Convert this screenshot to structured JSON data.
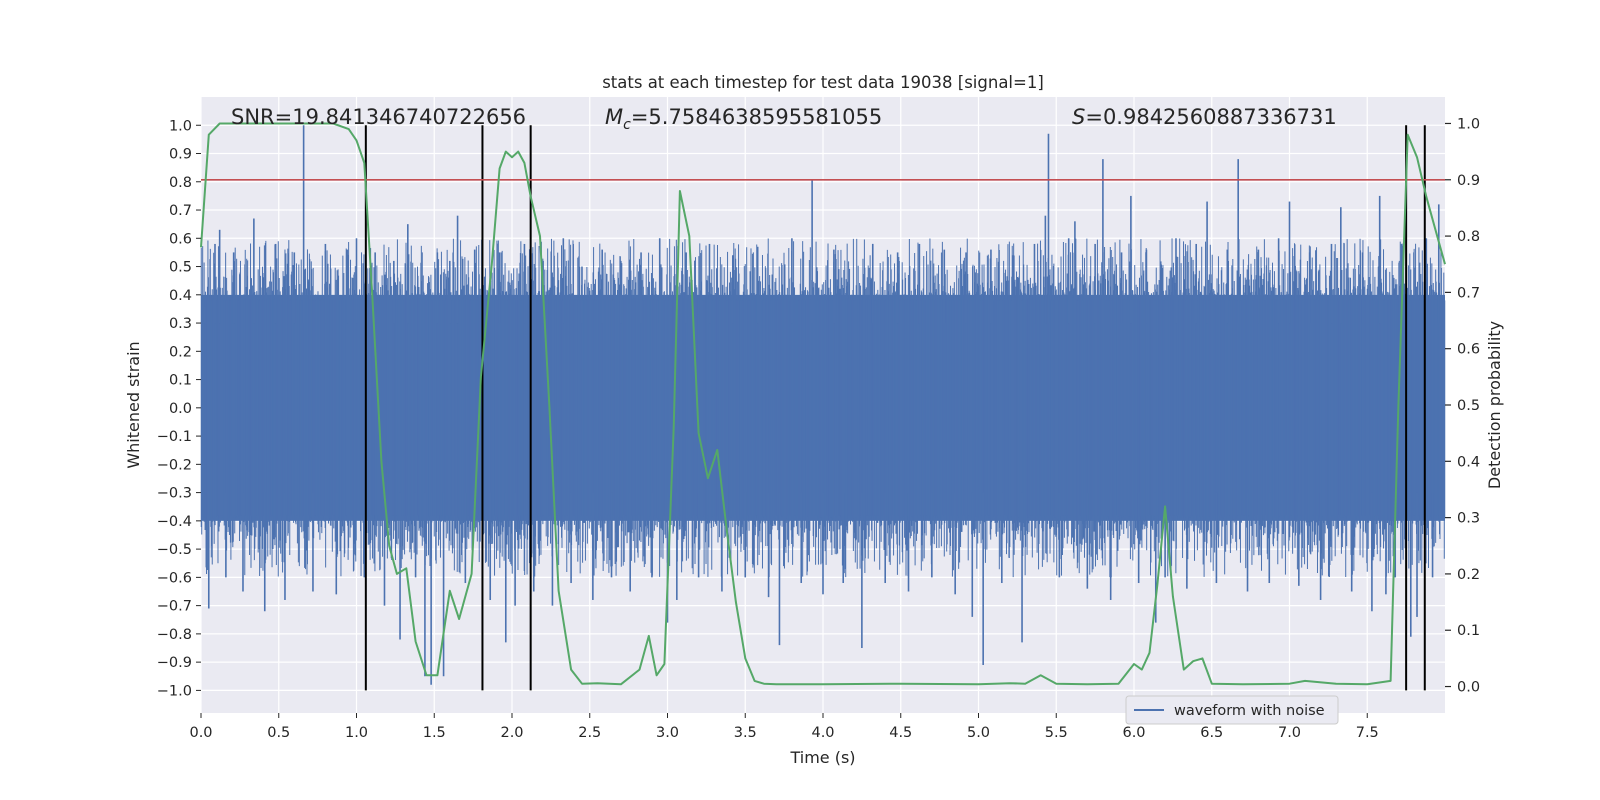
{
  "chart_data": {
    "type": "line",
    "title": "stats at each timestep for test data 19038 [signal=1]",
    "xlabel": "Time (s)",
    "ylabel_left": "Whitened strain",
    "ylabel_right": "Detection probability",
    "xlim": [
      0.0,
      8.0
    ],
    "ylim_left": [
      -1.08,
      1.1
    ],
    "ylim_right": [
      -0.047,
      1.047
    ],
    "x_ticks": [
      "0.0",
      "0.5",
      "1.0",
      "1.5",
      "2.0",
      "2.5",
      "3.0",
      "3.5",
      "4.0",
      "4.5",
      "5.0",
      "5.5",
      "6.0",
      "6.5",
      "7.0",
      "7.5"
    ],
    "y_left_ticks": [
      "1.0",
      "0.9",
      "0.8",
      "0.7",
      "0.6",
      "0.5",
      "0.4",
      "0.3",
      "0.2",
      "0.1",
      "0.0",
      "−0.1",
      "−0.2",
      "−0.3",
      "−0.4",
      "−0.5",
      "−0.6",
      "−0.7",
      "−0.8",
      "−0.9",
      "−1.0"
    ],
    "y_right_ticks": [
      "0.0",
      "0.1",
      "0.2",
      "0.3",
      "0.4",
      "0.5",
      "0.6",
      "0.7",
      "0.8",
      "0.9",
      "1.0"
    ],
    "annotations": {
      "snr": "SNR=19.841346740722656",
      "mc_symbol": "M",
      "mc_subscript": "c",
      "mc_value": "=5.7584638595581055",
      "s_symbol": "S",
      "s_value": "=0.9842560887336731"
    },
    "threshold": {
      "value": 0.9,
      "axis": "right",
      "color": "#c44e52"
    },
    "vertical_lines": [
      1.06,
      1.81,
      2.12,
      7.75,
      7.87
    ],
    "series": [
      {
        "name": "waveform with noise",
        "axis": "left",
        "color": "#4c72b0",
        "core_band": [
          -0.4,
          0.4
        ],
        "spikes": [
          [
            0.02,
            0.36
          ],
          [
            0.05,
            -0.71
          ],
          [
            0.09,
            0.58
          ],
          [
            0.12,
            0.63
          ],
          [
            0.16,
            -0.6
          ],
          [
            0.21,
            0.55
          ],
          [
            0.27,
            -0.65
          ],
          [
            0.34,
            0.67
          ],
          [
            0.41,
            -0.72
          ],
          [
            0.48,
            0.58
          ],
          [
            0.54,
            -0.68
          ],
          [
            0.6,
            0.55
          ],
          [
            0.66,
            1.0
          ],
          [
            0.72,
            -0.65
          ],
          [
            0.8,
            0.58
          ],
          [
            0.87,
            -0.66
          ],
          [
            0.94,
            0.56
          ],
          [
            1.0,
            0.6
          ],
          [
            1.05,
            -0.6
          ],
          [
            1.12,
            0.55
          ],
          [
            1.18,
            -0.7
          ],
          [
            1.24,
            0.52
          ],
          [
            1.28,
            -0.82
          ],
          [
            1.33,
            0.65
          ],
          [
            1.38,
            -0.6
          ],
          [
            1.44,
            -0.95
          ],
          [
            1.48,
            -0.98
          ],
          [
            1.52,
            0.55
          ],
          [
            1.56,
            -0.95
          ],
          [
            1.6,
            0.52
          ],
          [
            1.65,
            0.68
          ],
          [
            1.7,
            -0.62
          ],
          [
            1.76,
            0.56
          ],
          [
            1.86,
            -0.68
          ],
          [
            1.92,
            0.55
          ],
          [
            1.96,
            -0.83
          ],
          [
            2.02,
            -0.7
          ],
          [
            2.08,
            0.58
          ],
          [
            2.14,
            -0.65
          ],
          [
            2.2,
            0.52
          ],
          [
            2.26,
            -0.7
          ],
          [
            2.33,
            0.6
          ],
          [
            2.38,
            -0.62
          ],
          [
            2.45,
            0.5
          ],
          [
            2.52,
            -0.68
          ],
          [
            2.58,
            0.56
          ],
          [
            2.64,
            -0.6
          ],
          [
            2.7,
            0.52
          ],
          [
            2.76,
            -0.65
          ],
          [
            2.83,
            0.55
          ],
          [
            2.9,
            -0.6
          ],
          [
            2.95,
            0.6
          ],
          [
            3.0,
            -0.76
          ],
          [
            3.06,
            -0.68
          ],
          [
            3.12,
            0.55
          ],
          [
            3.2,
            -0.6
          ],
          [
            3.27,
            0.58
          ],
          [
            3.35,
            -0.65
          ],
          [
            3.42,
            0.54
          ],
          [
            3.5,
            -0.6
          ],
          [
            3.58,
            0.57
          ],
          [
            3.65,
            -0.67
          ],
          [
            3.72,
            -0.84
          ],
          [
            3.8,
            0.6
          ],
          [
            3.86,
            -0.62
          ],
          [
            3.93,
            0.81
          ],
          [
            4.0,
            -0.66
          ],
          [
            4.07,
            0.56
          ],
          [
            4.13,
            -0.62
          ],
          [
            4.25,
            -0.85
          ],
          [
            4.32,
            0.58
          ],
          [
            4.4,
            -0.62
          ],
          [
            4.48,
            0.55
          ],
          [
            4.55,
            -0.65
          ],
          [
            4.62,
            0.58
          ],
          [
            4.7,
            -0.6
          ],
          [
            4.78,
            0.56
          ],
          [
            4.85,
            -0.66
          ],
          [
            4.92,
            0.55
          ],
          [
            4.96,
            -0.74
          ],
          [
            5.03,
            -0.91
          ],
          [
            5.08,
            0.56
          ],
          [
            5.15,
            -0.62
          ],
          [
            5.22,
            0.54
          ],
          [
            5.28,
            -0.83
          ],
          [
            5.36,
            0.58
          ],
          [
            5.43,
            0.68
          ],
          [
            5.45,
            0.97
          ],
          [
            5.52,
            -0.6
          ],
          [
            5.58,
            0.6
          ],
          [
            5.62,
            0.66
          ],
          [
            5.7,
            -0.64
          ],
          [
            5.75,
            0.58
          ],
          [
            5.8,
            0.88
          ],
          [
            5.85,
            -0.68
          ],
          [
            5.92,
            0.55
          ],
          [
            5.98,
            0.75
          ],
          [
            6.03,
            -0.62
          ],
          [
            6.08,
            0.56
          ],
          [
            6.14,
            -0.76
          ],
          [
            6.2,
            -0.6
          ],
          [
            6.27,
            0.6
          ],
          [
            6.34,
            -0.64
          ],
          [
            6.4,
            0.58
          ],
          [
            6.47,
            0.73
          ],
          [
            6.53,
            -0.62
          ],
          [
            6.6,
            0.56
          ],
          [
            6.67,
            0.88
          ],
          [
            6.73,
            -0.65
          ],
          [
            6.8,
            0.56
          ],
          [
            6.87,
            -0.62
          ],
          [
            6.93,
            0.6
          ],
          [
            7.0,
            0.73
          ],
          [
            7.06,
            -0.63
          ],
          [
            7.13,
            0.55
          ],
          [
            7.2,
            -0.68
          ],
          [
            7.27,
            0.58
          ],
          [
            7.33,
            0.71
          ],
          [
            7.4,
            -0.65
          ],
          [
            7.47,
            0.55
          ],
          [
            7.53,
            -0.72
          ],
          [
            7.58,
            0.75
          ],
          [
            7.62,
            -0.66
          ],
          [
            7.68,
            -0.6
          ],
          [
            7.72,
            0.58
          ],
          [
            7.78,
            -0.81
          ],
          [
            7.82,
            -0.74
          ],
          [
            7.88,
            0.6
          ],
          [
            7.92,
            -0.6
          ],
          [
            7.96,
            0.72
          ]
        ]
      },
      {
        "name": "detection probability",
        "axis": "right",
        "color": "#55a868",
        "x": [
          0.0,
          0.05,
          0.12,
          0.3,
          0.5,
          0.7,
          0.85,
          0.95,
          1.0,
          1.05,
          1.1,
          1.16,
          1.21,
          1.26,
          1.32,
          1.38,
          1.45,
          1.52,
          1.6,
          1.66,
          1.74,
          1.8,
          1.87,
          1.92,
          1.96,
          2.0,
          2.04,
          2.08,
          2.12,
          2.18,
          2.24,
          2.3,
          2.38,
          2.45,
          2.55,
          2.7,
          2.82,
          2.88,
          2.93,
          2.98,
          3.04,
          3.08,
          3.14,
          3.2,
          3.26,
          3.32,
          3.38,
          3.44,
          3.5,
          3.56,
          3.62,
          3.7,
          4.0,
          4.5,
          5.0,
          5.2,
          5.3,
          5.4,
          5.5,
          5.7,
          5.9,
          6.0,
          6.05,
          6.1,
          6.15,
          6.2,
          6.25,
          6.32,
          6.38,
          6.44,
          6.5,
          6.7,
          7.0,
          7.1,
          7.3,
          7.5,
          7.65,
          7.7,
          7.76,
          7.82,
          7.88,
          7.95,
          8.0
        ],
        "values": [
          0.78,
          0.98,
          1.0,
          1.0,
          1.0,
          1.0,
          1.0,
          0.99,
          0.97,
          0.93,
          0.7,
          0.4,
          0.25,
          0.2,
          0.21,
          0.08,
          0.02,
          0.02,
          0.17,
          0.12,
          0.2,
          0.55,
          0.75,
          0.92,
          0.95,
          0.94,
          0.95,
          0.93,
          0.87,
          0.8,
          0.5,
          0.17,
          0.03,
          0.005,
          0.006,
          0.004,
          0.03,
          0.09,
          0.02,
          0.04,
          0.46,
          0.88,
          0.8,
          0.45,
          0.37,
          0.42,
          0.28,
          0.15,
          0.05,
          0.01,
          0.005,
          0.004,
          0.004,
          0.005,
          0.004,
          0.006,
          0.005,
          0.02,
          0.005,
          0.004,
          0.005,
          0.04,
          0.03,
          0.06,
          0.18,
          0.32,
          0.16,
          0.03,
          0.045,
          0.05,
          0.005,
          0.004,
          0.005,
          0.01,
          0.005,
          0.004,
          0.01,
          0.5,
          0.98,
          0.94,
          0.87,
          0.8,
          0.75
        ]
      }
    ],
    "legend": {
      "label": "waveform with noise",
      "placement": "lower-right"
    }
  }
}
